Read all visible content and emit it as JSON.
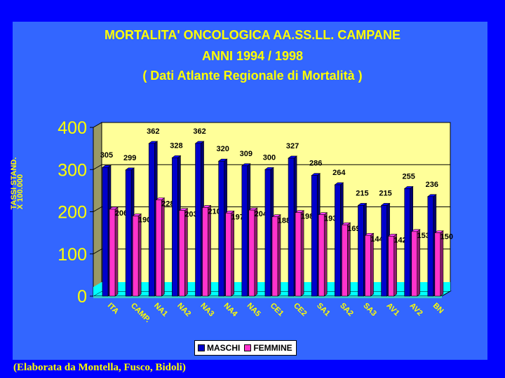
{
  "title_lines": [
    "MORTALITA' ONCOLOGICA  AA.SS.LL.  CAMPANE",
    "ANNI 1994 / 1998",
    "( Dati Atlante Regionale di Mortalità )"
  ],
  "ylabel_lines": [
    "TASSI STAND.",
    "X 100.000"
  ],
  "caption": "(Elaborata da Montella, Fusco, Bidoli)",
  "colors": {
    "background": "#0000ff",
    "panel": "#3366ff",
    "plot_wall": "#ffff99",
    "floor": "#00ffff",
    "maschi": "#0000cc",
    "femmine": "#ff33cc",
    "title": "#ffff00"
  },
  "chart_data": {
    "type": "bar",
    "categories": [
      "ITA",
      "CAMP.",
      "NA1",
      "NA2",
      "NA3",
      "NA4",
      "NA5",
      "CE1",
      "CE2",
      "SA1",
      "SA2",
      "SA3",
      "AV1",
      "AV2",
      "BN"
    ],
    "series": [
      {
        "name": "MASCHI",
        "values": [
          305,
          299,
          362,
          328,
          362,
          320,
          309,
          300,
          327,
          286,
          264,
          215,
          215,
          255,
          236
        ]
      },
      {
        "name": "FEMMINE",
        "values": [
          206,
          190,
          228,
          203,
          210,
          197,
          204,
          188,
          198,
          193,
          169,
          144,
          142,
          153,
          150
        ]
      }
    ],
    "y_ticks": [
      "0",
      "100",
      "200",
      "300",
      "400"
    ],
    "ylim": [
      0,
      400
    ],
    "grid": true,
    "legend_position": "bottom",
    "style": "3d"
  }
}
